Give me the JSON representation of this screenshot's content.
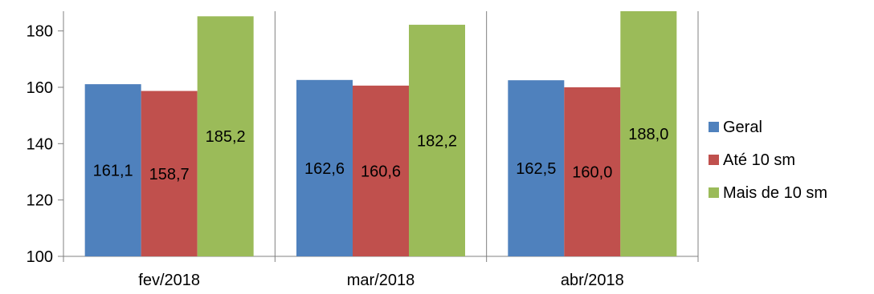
{
  "chart_data": {
    "type": "bar",
    "title": "",
    "xlabel": "",
    "ylabel": "",
    "categories": [
      "fev/2018",
      "mar/2018",
      "abr/2018"
    ],
    "series": [
      {
        "name": "Geral",
        "values": [
          161.1,
          162.6,
          162.5
        ],
        "labels": [
          "161,1",
          "162,6",
          "162,5"
        ],
        "color": "#4F81BD"
      },
      {
        "name": "Até 10 sm",
        "values": [
          158.7,
          160.6,
          160.0
        ],
        "labels": [
          "158,7",
          "160,6",
          "160,0"
        ],
        "color": "#C0504D"
      },
      {
        "name": "Mais de 10 sm",
        "values": [
          185.2,
          182.2,
          188.0
        ],
        "labels": [
          "185,2",
          "182,2",
          "188,0"
        ],
        "color": "#9BBB59"
      }
    ],
    "ylim": [
      100,
      187
    ],
    "yticks": [
      100,
      120,
      140,
      160,
      180
    ],
    "grid": false,
    "legend_position": "right",
    "colors": {
      "axis": "#808080",
      "text": "#000000"
    }
  }
}
